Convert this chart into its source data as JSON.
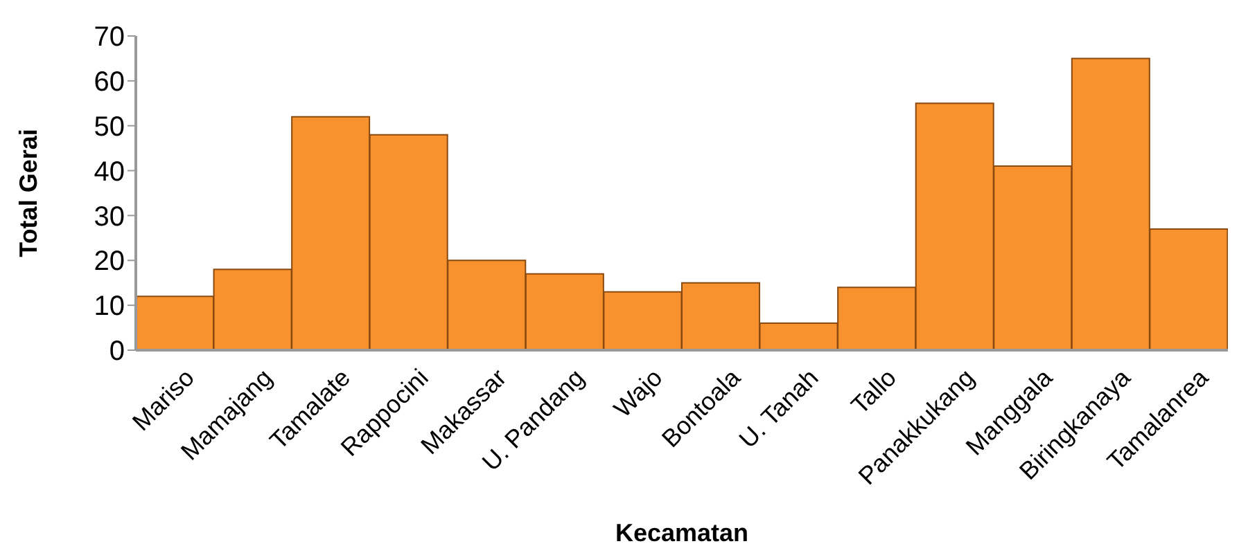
{
  "chart_data": {
    "type": "bar",
    "xlabel": "Kecamatan",
    "ylabel": "Total Gerai",
    "categories": [
      "Mariso",
      "Mamajang",
      "Tamalate",
      "Rappocini",
      "Makassar",
      "U. Pandang",
      "Wajo",
      "Bontoala",
      "U. Tanah",
      "Tallo",
      "Panakkukang",
      "Manggala",
      "Biringkanaya",
      "Tamalanrea"
    ],
    "values": [
      12,
      18,
      52,
      48,
      20,
      17,
      13,
      15,
      6,
      14,
      55,
      41,
      65,
      27
    ],
    "color": "#f7922e",
    "ylim": [
      0,
      70
    ],
    "yticks": [
      0,
      10,
      20,
      30,
      40,
      50,
      60,
      70
    ],
    "grid": false,
    "legend": false
  }
}
